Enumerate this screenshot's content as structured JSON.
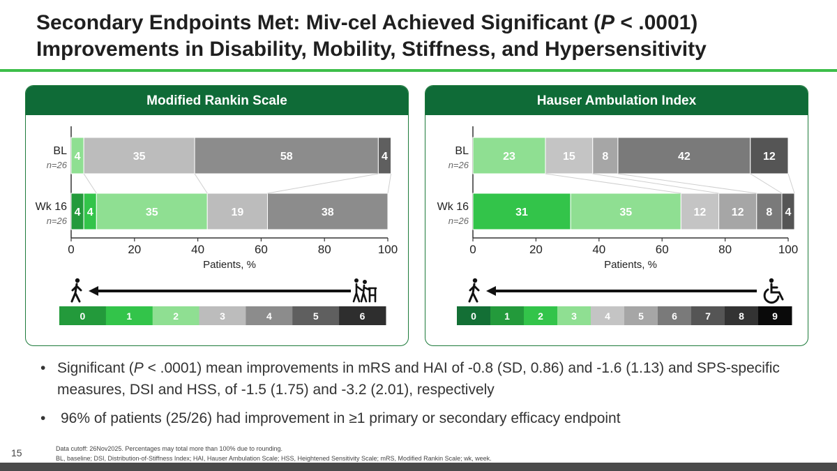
{
  "slide": {
    "title_line1_a": "Secondary Endpoints Met: Miv-cel Achieved Significant (",
    "title_line1_p": "P",
    "title_line1_b": " < .0001)",
    "title_line2": "Improvements in Disability, Mobility, Stiffness, and Hypersensitivity",
    "page_number": "15",
    "footnote1": "Data cutoff: 26Nov2025. Percentages may total more than 100% due to rounding.",
    "footnote2": "BL, baseline; DSI, Distribution-of-Stiffness Index; HAI, Hauser Ambulation Scale; HSS, Heightened Sensitivity Scale; mRS, Modified Rankin Scale; wk, week.",
    "bullet1_a": "Significant (",
    "bullet1_p": "P",
    "bullet1_b": " < .0001) mean improvements in mRS and HAI of -0.8 (SD, 0.86) and -1.6 (1.13) and SPS-specific measures, DSI and HSS, of -1.5 (1.75) and -3.2 (2.01), respectively",
    "bullet2": "96% of patients (25/26) had improvement in ≥1 primary or secondary efficacy endpoint",
    "bullet_symbol": "•"
  },
  "chart_data": [
    {
      "type": "bar",
      "orientation": "horizontal-stacked",
      "title": "Modified Rankin Scale",
      "xlabel": "Patients, %",
      "xlim": [
        0,
        100
      ],
      "xticks": [
        0,
        20,
        40,
        60,
        80,
        100
      ],
      "rows": [
        {
          "label": "BL",
          "n": "n=26",
          "segments": [
            {
              "category": "2",
              "value": 4
            },
            {
              "category": "3",
              "value": 35
            },
            {
              "category": "4",
              "value": 58
            },
            {
              "category": "5",
              "value": 4
            }
          ]
        },
        {
          "label": "Wk 16",
          "n": "n=26",
          "segments": [
            {
              "category": "0",
              "value": 4
            },
            {
              "category": "1",
              "value": 4
            },
            {
              "category": "2",
              "value": 35
            },
            {
              "category": "3",
              "value": 19
            },
            {
              "category": "4",
              "value": 38
            }
          ]
        }
      ],
      "legend": [
        {
          "label": "0",
          "color": "#239a3b"
        },
        {
          "label": "1",
          "color": "#33c44a"
        },
        {
          "label": "2",
          "color": "#8fdf92"
        },
        {
          "label": "3",
          "color": "#bcbcbc"
        },
        {
          "label": "4",
          "color": "#8c8c8c"
        },
        {
          "label": "5",
          "color": "#5f5f5f"
        },
        {
          "label": "6",
          "color": "#2e2e2e"
        }
      ],
      "icons": {
        "left": "walking-person-icon",
        "right": "person-with-walker-icon"
      }
    },
    {
      "type": "bar",
      "orientation": "horizontal-stacked",
      "title": "Hauser Ambulation Index",
      "xlabel": "Patients, %",
      "xlim": [
        0,
        100
      ],
      "xticks": [
        0,
        20,
        40,
        60,
        80,
        100
      ],
      "rows": [
        {
          "label": "BL",
          "n": "n=26",
          "segments": [
            {
              "category": "3",
              "value": 23
            },
            {
              "category": "4",
              "value": 15
            },
            {
              "category": "5",
              "value": 8
            },
            {
              "category": "6",
              "value": 42
            },
            {
              "category": "7",
              "value": 12
            }
          ]
        },
        {
          "label": "Wk 16",
          "n": "n=26",
          "segments": [
            {
              "category": "2",
              "value": 31
            },
            {
              "category": "3",
              "value": 35
            },
            {
              "category": "4",
              "value": 12
            },
            {
              "category": "5",
              "value": 12
            },
            {
              "category": "6",
              "value": 8
            },
            {
              "category": "7",
              "value": 4
            }
          ]
        }
      ],
      "legend": [
        {
          "label": "0",
          "color": "#136f35"
        },
        {
          "label": "1",
          "color": "#239a3b"
        },
        {
          "label": "2",
          "color": "#33c44a"
        },
        {
          "label": "3",
          "color": "#8fdf92"
        },
        {
          "label": "4",
          "color": "#c4c4c4"
        },
        {
          "label": "5",
          "color": "#a6a6a6"
        },
        {
          "label": "6",
          "color": "#7a7a7a"
        },
        {
          "label": "7",
          "color": "#555555"
        },
        {
          "label": "8",
          "color": "#333333"
        },
        {
          "label": "9",
          "color": "#0a0a0a"
        }
      ],
      "icons": {
        "left": "walking-person-icon",
        "right": "wheelchair-icon"
      }
    }
  ]
}
